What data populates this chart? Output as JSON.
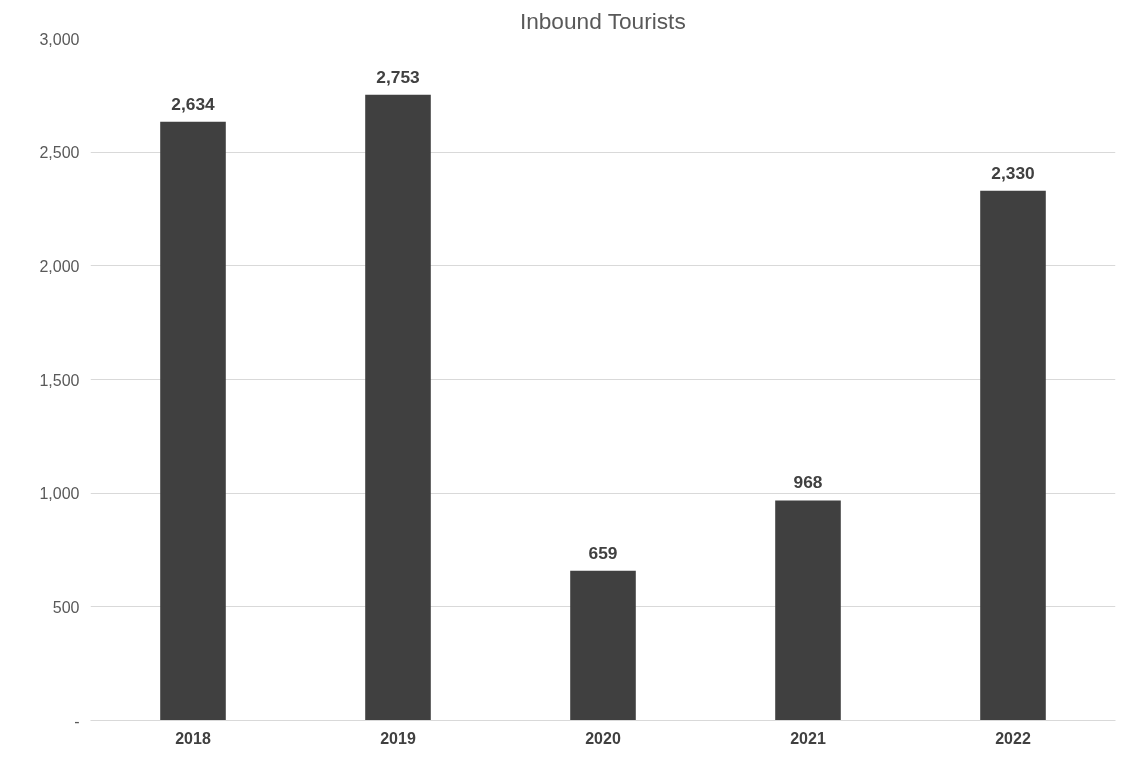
{
  "chart_data": {
    "type": "bar",
    "title": "Inbound Tourists",
    "categories": [
      "2018",
      "2019",
      "2020",
      "2021",
      "2022"
    ],
    "values": [
      2634,
      2753,
      659,
      968,
      2330
    ],
    "value_labels": [
      "2,634",
      "2,753",
      "659",
      "968",
      "2,330"
    ],
    "color": "#404040",
    "ylim": [
      0,
      3000
    ],
    "yticks": [
      {
        "value": 0,
        "label": "-"
      },
      {
        "value": 500,
        "label": "500"
      },
      {
        "value": 1000,
        "label": "1,000"
      },
      {
        "value": 1500,
        "label": "1,500"
      },
      {
        "value": 2000,
        "label": "2,000"
      },
      {
        "value": 2500,
        "label": "2,500"
      },
      {
        "value": 3000,
        "label": "3,000"
      }
    ],
    "grid": "y"
  }
}
